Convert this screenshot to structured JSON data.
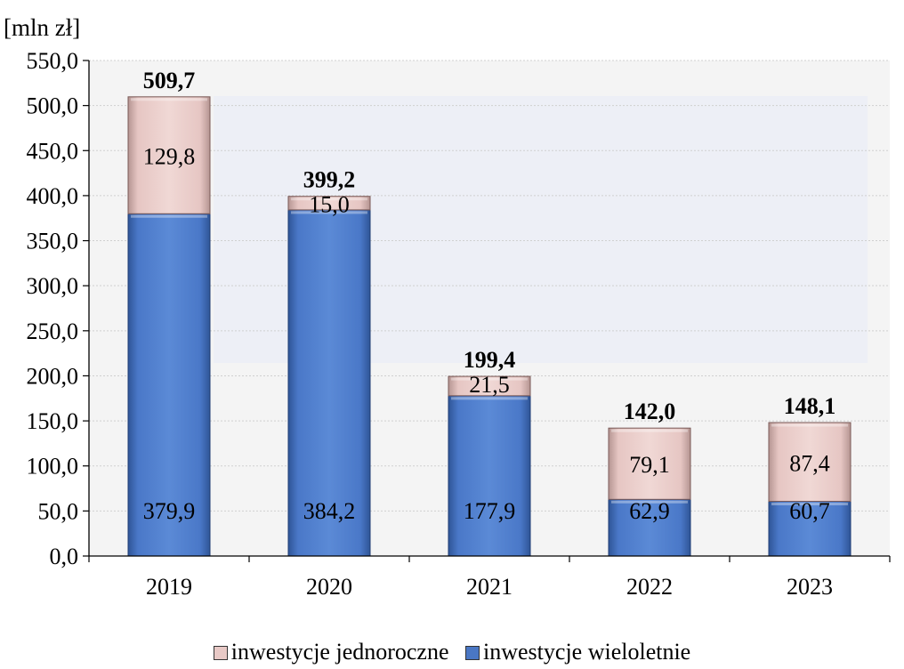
{
  "chart_data": {
    "type": "bar",
    "stacked": true,
    "unit_label": "[mln zł]",
    "categories": [
      "2019",
      "2020",
      "2021",
      "2022",
      "2023"
    ],
    "series": [
      {
        "name": "inwestycje wieloletnie",
        "values": [
          379.9,
          384.2,
          177.9,
          62.9,
          60.7
        ],
        "labels": [
          "379,9",
          "384,2",
          "177,9",
          "62,9",
          "60,7"
        ],
        "color": "#4a77c4"
      },
      {
        "name": "inwestycje jednoroczne",
        "values": [
          129.8,
          15.0,
          21.5,
          79.1,
          87.4
        ],
        "labels": [
          "129,8",
          "15,0",
          "21,5",
          "79,1",
          "87,4"
        ],
        "color": "#e8c9c6"
      }
    ],
    "totals": [
      "509,7",
      "399,2",
      "199,4",
      "142,0",
      "148,1"
    ],
    "ylim": [
      0,
      550
    ],
    "yticks": [
      "0,0",
      "50,0",
      "100,0",
      "150,0",
      "200,0",
      "250,0",
      "300,0",
      "350,0",
      "400,0",
      "450,0",
      "500,0",
      "550,0"
    ],
    "grid": true,
    "legend_position": "bottom"
  }
}
